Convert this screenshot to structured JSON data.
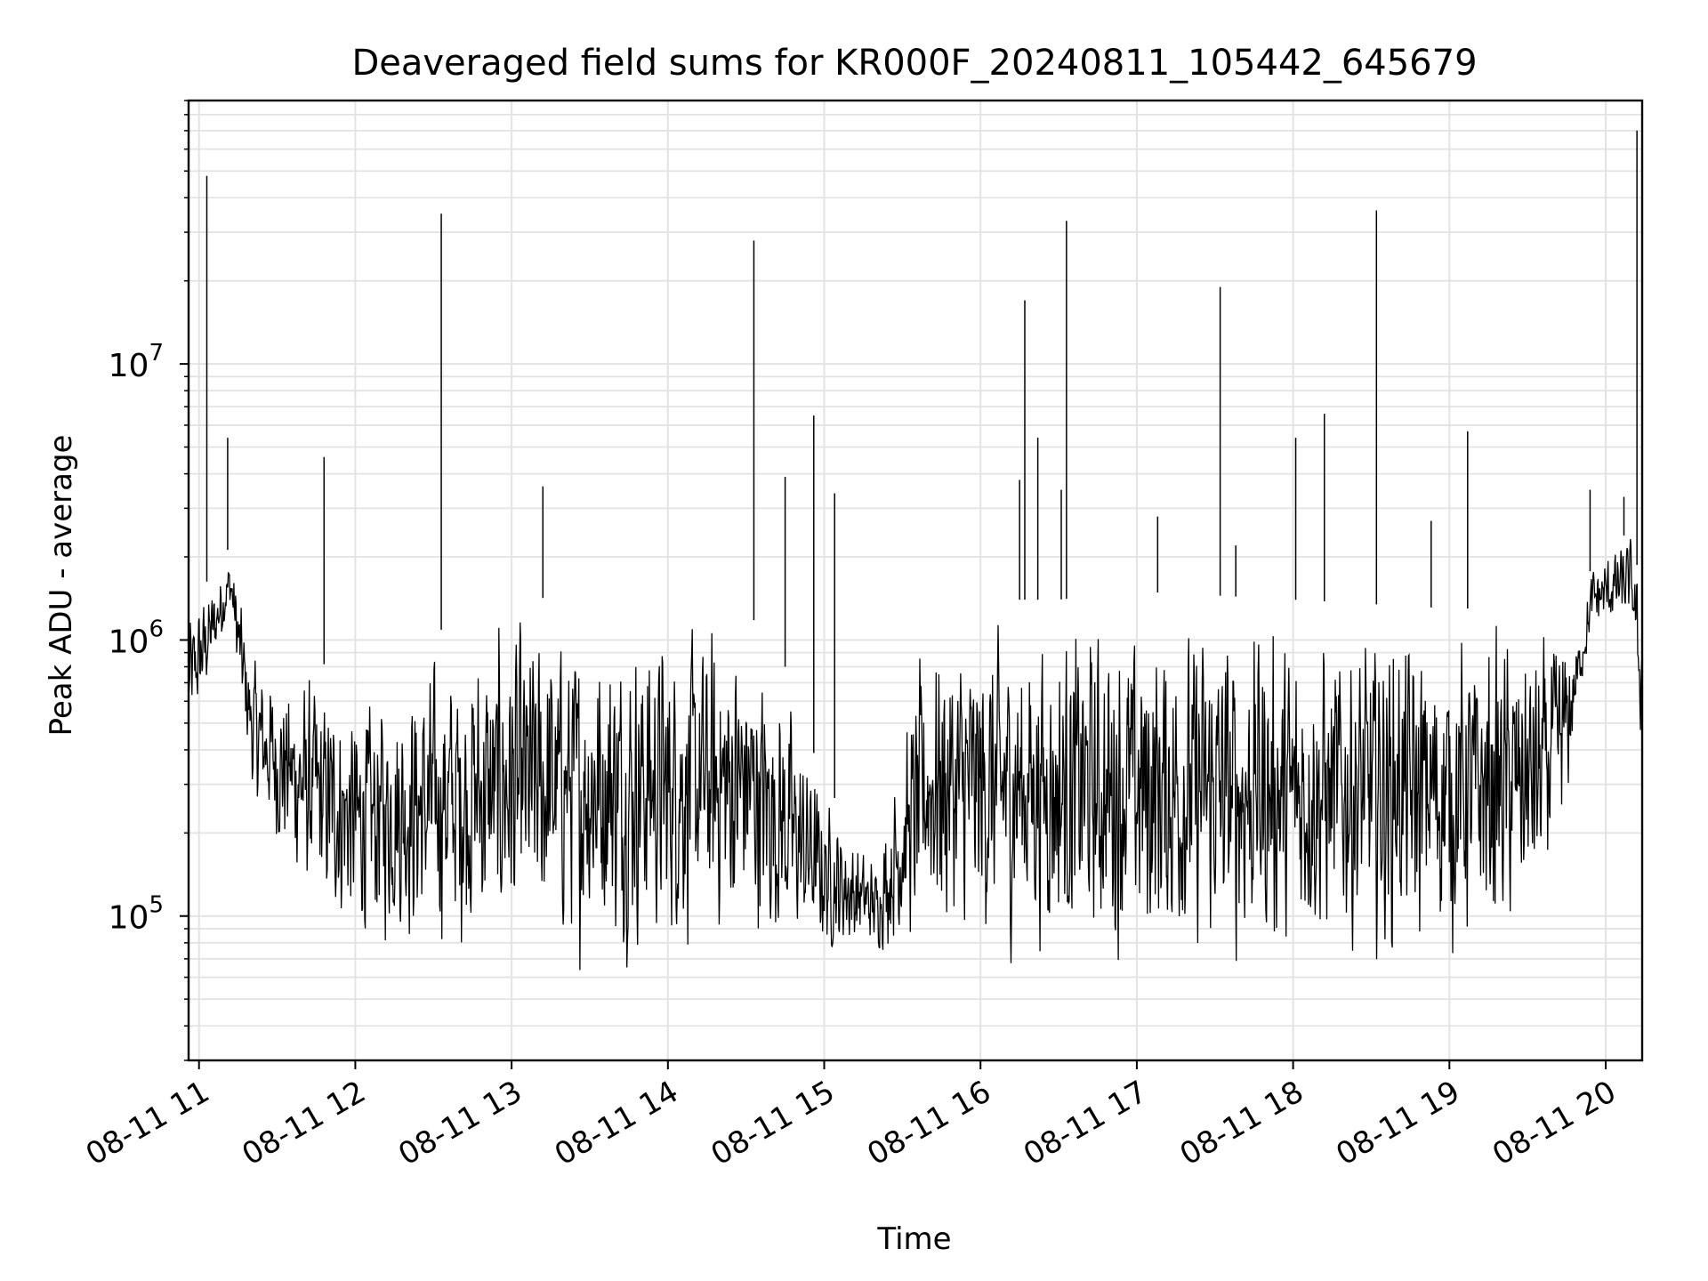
{
  "chart_data": {
    "type": "line",
    "title": "Deaveraged field sums for KR000F_20240811_105442_645679",
    "xlabel": "Time",
    "ylabel": "Peak ADU - average",
    "x_range": [
      "2024-08-11 10:56",
      "2024-08-11 20:14"
    ],
    "y_scale": "log",
    "ylim": [
      30000,
      90000000
    ],
    "grid": true,
    "line_color": "#000000",
    "grid_color": "#e3e3e3",
    "x_ticks": [
      {
        "time": "2024-08-11 11:00",
        "label": "08-11 11"
      },
      {
        "time": "2024-08-11 12:00",
        "label": "08-11 12"
      },
      {
        "time": "2024-08-11 13:00",
        "label": "08-11 13"
      },
      {
        "time": "2024-08-11 14:00",
        "label": "08-11 14"
      },
      {
        "time": "2024-08-11 15:00",
        "label": "08-11 15"
      },
      {
        "time": "2024-08-11 16:00",
        "label": "08-11 16"
      },
      {
        "time": "2024-08-11 17:00",
        "label": "08-11 17"
      },
      {
        "time": "2024-08-11 18:00",
        "label": "08-11 18"
      },
      {
        "time": "2024-08-11 19:00",
        "label": "08-11 19"
      },
      {
        "time": "2024-08-11 20:00",
        "label": "08-11 20"
      }
    ],
    "y_ticks": [
      {
        "value": 100000,
        "base": "10",
        "exp": "5"
      },
      {
        "value": 1000000,
        "base": "10",
        "exp": "6"
      },
      {
        "value": 10000000,
        "base": "10",
        "exp": "7"
      }
    ],
    "series": [
      {
        "envelope": [
          {
            "time": "2024-08-11 10:56",
            "low": 350000,
            "high": 1400000
          },
          {
            "time": "2024-08-11 11:05",
            "low": 700000,
            "high": 1700000
          },
          {
            "time": "2024-08-11 11:12",
            "low": 1200000,
            "high": 2200000
          },
          {
            "time": "2024-08-11 11:20",
            "low": 250000,
            "high": 1000000
          },
          {
            "time": "2024-08-11 11:30",
            "low": 150000,
            "high": 850000
          },
          {
            "time": "2024-08-11 11:45",
            "low": 90000,
            "high": 850000
          },
          {
            "time": "2024-08-11 12:00",
            "low": 70000,
            "high": 700000
          },
          {
            "time": "2024-08-11 12:20",
            "low": 65000,
            "high": 900000
          },
          {
            "time": "2024-08-11 12:45",
            "low": 60000,
            "high": 1300000
          },
          {
            "time": "2024-08-11 13:00",
            "low": 60000,
            "high": 1400000
          },
          {
            "time": "2024-08-11 13:30",
            "low": 60000,
            "high": 1450000
          },
          {
            "time": "2024-08-11 14:00",
            "low": 60000,
            "high": 1450000
          },
          {
            "time": "2024-08-11 14:30",
            "low": 70000,
            "high": 1300000
          },
          {
            "time": "2024-08-11 14:45",
            "low": 60000,
            "high": 800000
          },
          {
            "time": "2024-08-11 15:00",
            "low": 65000,
            "high": 300000
          },
          {
            "time": "2024-08-11 15:20",
            "low": 70000,
            "high": 170000
          },
          {
            "time": "2024-08-11 15:40",
            "low": 65000,
            "high": 1400000
          },
          {
            "time": "2024-08-11 16:00",
            "low": 60000,
            "high": 1400000
          },
          {
            "time": "2024-08-11 16:30",
            "low": 60000,
            "high": 1400000
          },
          {
            "time": "2024-08-11 17:00",
            "low": 55000,
            "high": 1500000
          },
          {
            "time": "2024-08-11 17:30",
            "low": 55000,
            "high": 1450000
          },
          {
            "time": "2024-08-11 18:00",
            "low": 55000,
            "high": 1400000
          },
          {
            "time": "2024-08-11 18:30",
            "low": 60000,
            "high": 1350000
          },
          {
            "time": "2024-08-11 19:00",
            "low": 60000,
            "high": 1300000
          },
          {
            "time": "2024-08-11 19:20",
            "low": 65000,
            "high": 1300000
          },
          {
            "time": "2024-08-11 19:35",
            "low": 80000,
            "high": 1250000
          },
          {
            "time": "2024-08-11 19:45",
            "low": 200000,
            "high": 1200000
          },
          {
            "time": "2024-08-11 19:50",
            "low": 600000,
            "high": 1100000
          },
          {
            "time": "2024-08-11 19:55",
            "low": 1000000,
            "high": 2000000
          },
          {
            "time": "2024-08-11 20:10",
            "low": 1100000,
            "high": 2500000
          },
          {
            "time": "2024-08-11 20:14",
            "low": 300000,
            "high": 1400000
          }
        ],
        "spikes": [
          {
            "time": "2024-08-11 11:03",
            "value": 48000000
          },
          {
            "time": "2024-08-11 11:11",
            "value": 5400000
          },
          {
            "time": "2024-08-11 11:48",
            "value": 4600000
          },
          {
            "time": "2024-08-11 12:33",
            "value": 35000000
          },
          {
            "time": "2024-08-11 13:12",
            "value": 3600000
          },
          {
            "time": "2024-08-11 14:33",
            "value": 28000000
          },
          {
            "time": "2024-08-11 14:45",
            "value": 3900000
          },
          {
            "time": "2024-08-11 14:56",
            "value": 6500000
          },
          {
            "time": "2024-08-11 15:04",
            "value": 3400000
          },
          {
            "time": "2024-08-11 16:17",
            "value": 17000000
          },
          {
            "time": "2024-08-11 16:15",
            "value": 3800000
          },
          {
            "time": "2024-08-11 16:22",
            "value": 5400000
          },
          {
            "time": "2024-08-11 16:33",
            "value": 33000000
          },
          {
            "time": "2024-08-11 16:31",
            "value": 3500000
          },
          {
            "time": "2024-08-11 17:08",
            "value": 2800000
          },
          {
            "time": "2024-08-11 17:32",
            "value": 19000000
          },
          {
            "time": "2024-08-11 17:38",
            "value": 2200000
          },
          {
            "time": "2024-08-11 18:01",
            "value": 5400000
          },
          {
            "time": "2024-08-11 18:12",
            "value": 6600000
          },
          {
            "time": "2024-08-11 18:32",
            "value": 36000000
          },
          {
            "time": "2024-08-11 18:53",
            "value": 2700000
          },
          {
            "time": "2024-08-11 19:07",
            "value": 5700000
          },
          {
            "time": "2024-08-11 19:54",
            "value": 3500000
          },
          {
            "time": "2024-08-11 20:07",
            "value": 3300000
          },
          {
            "time": "2024-08-11 20:12",
            "value": 70000000
          }
        ]
      }
    ]
  }
}
